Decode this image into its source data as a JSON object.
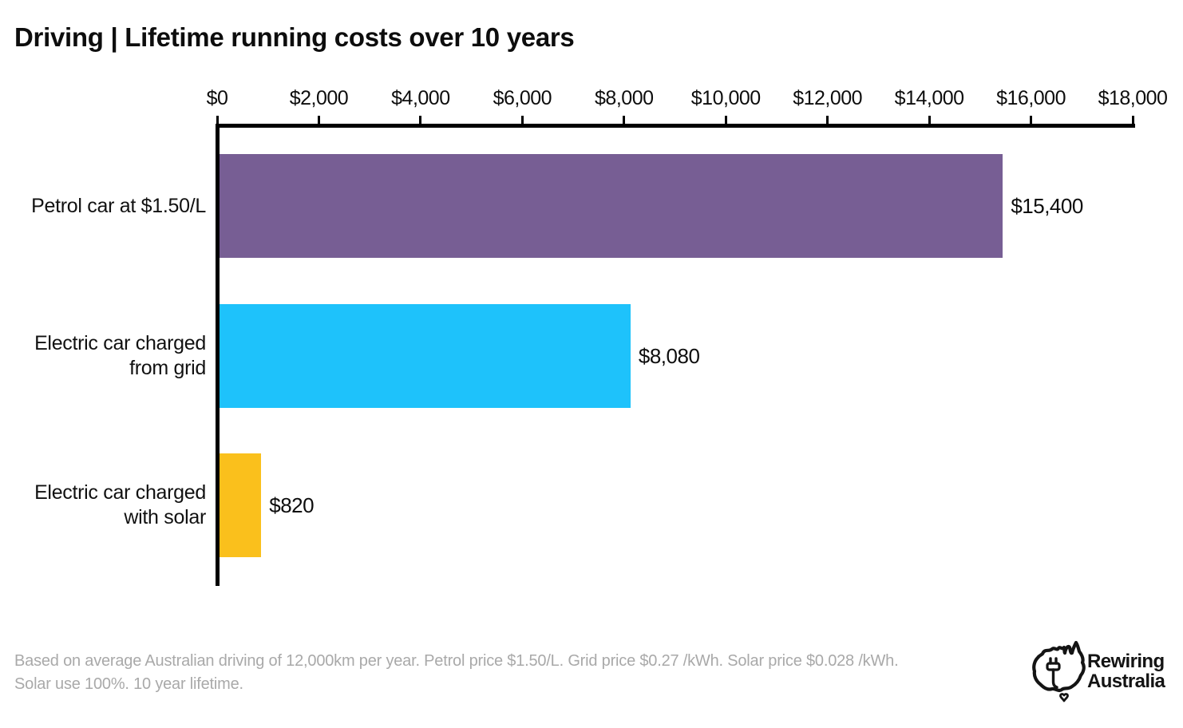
{
  "title": "Driving | Lifetime running costs over 10 years",
  "chart_data": {
    "type": "bar",
    "orientation": "horizontal",
    "title": "Driving | Lifetime running costs over 10 years",
    "categories": [
      "Petrol car at $1.50/L",
      "Electric car charged from grid",
      "Electric car charged with solar"
    ],
    "category_lines": [
      [
        "Petrol car at $1.50/L"
      ],
      [
        "Electric car charged",
        "from grid"
      ],
      [
        "Electric car charged",
        "with solar"
      ]
    ],
    "values": [
      15400,
      8080,
      820
    ],
    "value_labels": [
      "$15,400",
      "$8,080",
      "$820"
    ],
    "bar_colors": [
      "#775E94",
      "#1EC2FB",
      "#FAC01C"
    ],
    "xlim": [
      0,
      18000
    ],
    "x_ticks": [
      0,
      2000,
      4000,
      6000,
      8000,
      10000,
      12000,
      14000,
      16000,
      18000
    ],
    "x_tick_labels": [
      "$0",
      "$2,000",
      "$4,000",
      "$6,000",
      "$8,000",
      "$10,000",
      "$12,000",
      "$14,000",
      "$16,000",
      "$18,000"
    ],
    "grid": false,
    "legend": "none",
    "axis_position": "top",
    "axis_color": "#000000"
  },
  "footnote": {
    "lines": [
      "Based on average Australian driving of 12,000km per year. Petrol price $1.50/L. Grid price $0.27 /kWh. Solar price $0.028 /kWh.",
      "Solar use 100%. 10 year lifetime."
    ],
    "color": "#A9A9A9"
  },
  "logo": {
    "name": "Rewiring Australia",
    "line1": "Rewiring",
    "line2": "Australia"
  }
}
